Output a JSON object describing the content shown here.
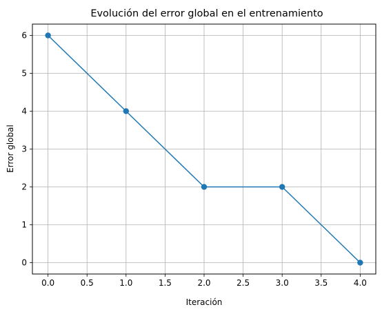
{
  "chart_data": {
    "type": "line",
    "title": "Evolución del error global en el entrenamiento",
    "xlabel": "Iteración",
    "ylabel": "Error global",
    "x": [
      0,
      1,
      2,
      3,
      4
    ],
    "series": [
      {
        "values": [
          6,
          4,
          2,
          2,
          0
        ],
        "color": "#1f77b4",
        "marker": "circle"
      }
    ],
    "xlim": [
      -0.2,
      4.2
    ],
    "ylim": [
      -0.3,
      6.3
    ],
    "xticks": [
      0.0,
      0.5,
      1.0,
      1.5,
      2.0,
      2.5,
      3.0,
      3.5,
      4.0
    ],
    "xtick_labels": [
      "0.0",
      "0.5",
      "1.0",
      "1.5",
      "2.0",
      "2.5",
      "3.0",
      "3.5",
      "4.0"
    ],
    "yticks": [
      0,
      1,
      2,
      3,
      4,
      5,
      6
    ],
    "ytick_labels": [
      "0",
      "1",
      "2",
      "3",
      "4",
      "5",
      "6"
    ],
    "grid": true,
    "grid_color": "#b0b0b0"
  }
}
